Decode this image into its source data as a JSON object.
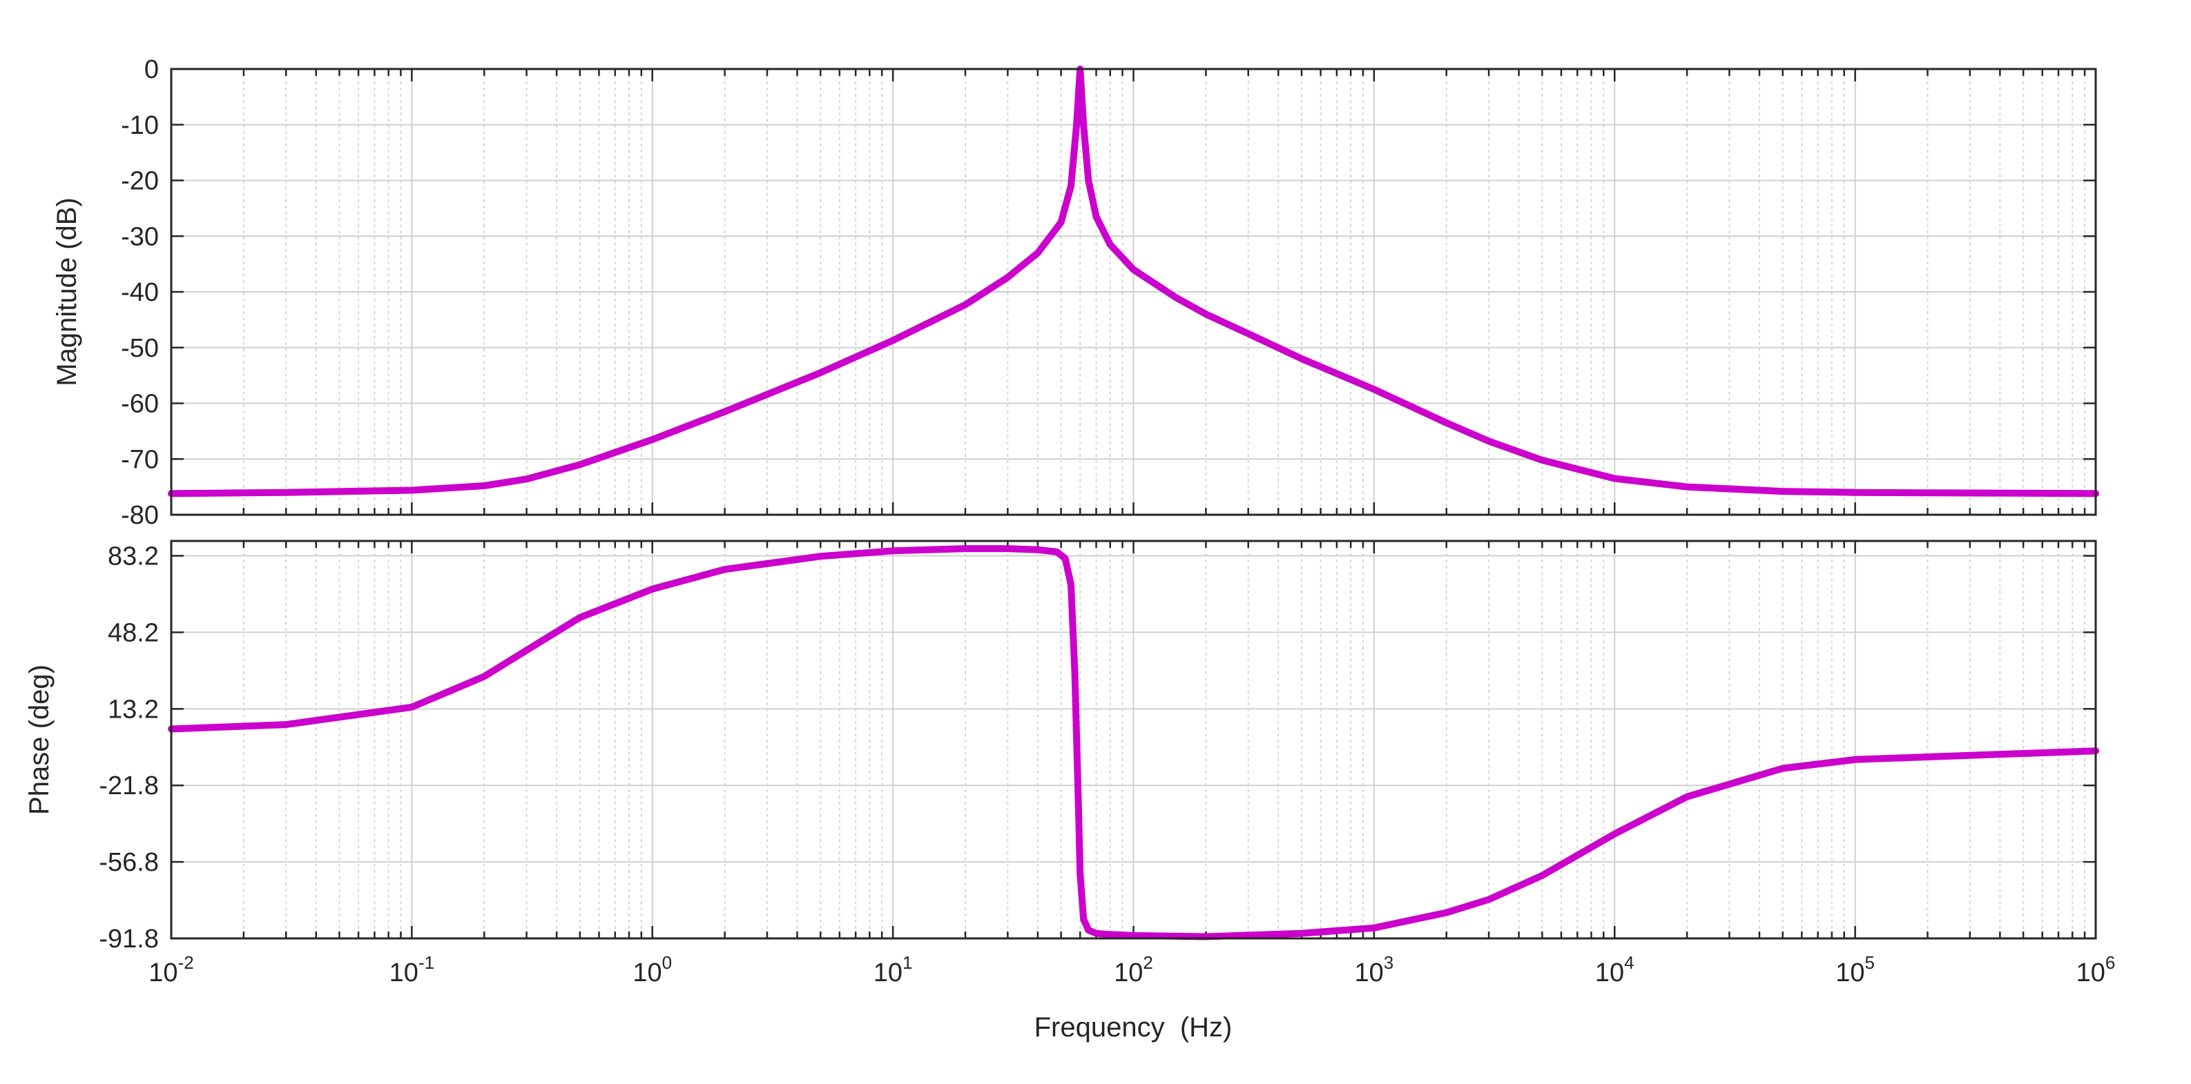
{
  "chart_data": [
    {
      "type": "line",
      "panel": "magnitude",
      "title": "",
      "ylabel": "Magnitude (dB)",
      "xscale": "log",
      "xlim": [
        0.01,
        1000000
      ],
      "ylim": [
        -80,
        0
      ],
      "yticks": [
        0,
        -10,
        -20,
        -30,
        -40,
        -50,
        -60,
        -70,
        -80
      ],
      "ytick_labels": [
        "0",
        "-10",
        "-20",
        "-30",
        "-40",
        "-50",
        "-60",
        "-70",
        "-80"
      ],
      "grid": true,
      "color": "#cc00cc",
      "series": [
        {
          "name": "Magnitude",
          "x": [
            0.01,
            0.03,
            0.1,
            0.2,
            0.3,
            0.5,
            1,
            2,
            5,
            10,
            20,
            30,
            40,
            50,
            55,
            58,
            60,
            62,
            65,
            70,
            80,
            100,
            150,
            200,
            300,
            500,
            1000,
            2000,
            3000,
            5000,
            10000,
            20000,
            50000,
            100000,
            1000000
          ],
          "y": [
            -76.2,
            -76.0,
            -75.6,
            -74.8,
            -73.6,
            -71.0,
            -66.5,
            -61.5,
            -54.5,
            -48.7,
            -42.3,
            -37.4,
            -33.0,
            -27.5,
            -21.0,
            -10.0,
            0,
            -10.0,
            -20.0,
            -26.5,
            -31.5,
            -36.0,
            -41.0,
            -44.0,
            -47.5,
            -52.0,
            -57.5,
            -63.5,
            -66.8,
            -70.2,
            -73.5,
            -75.0,
            -75.8,
            -76.0,
            -76.2
          ]
        }
      ]
    },
    {
      "type": "line",
      "panel": "phase",
      "title": "",
      "xlabel": "Frequency  (Hz)",
      "ylabel": "Phase (deg)",
      "xscale": "log",
      "xlim": [
        0.01,
        1000000
      ],
      "ylim": [
        -91.8,
        90
      ],
      "yticks": [
        83.2,
        48.2,
        13.2,
        -21.8,
        -56.8,
        -91.8
      ],
      "ytick_labels": [
        "83.2",
        "48.2",
        "13.2",
        "-21.8",
        "-56.8",
        "-91.8"
      ],
      "xticks": [
        0.01,
        0.1,
        1,
        10,
        100,
        1000,
        10000,
        100000,
        1000000
      ],
      "xtick_labels": [
        {
          "base": "10",
          "exp": "-2"
        },
        {
          "base": "10",
          "exp": "-1"
        },
        {
          "base": "10",
          "exp": "0"
        },
        {
          "base": "10",
          "exp": "1"
        },
        {
          "base": "10",
          "exp": "2"
        },
        {
          "base": "10",
          "exp": "3"
        },
        {
          "base": "10",
          "exp": "4"
        },
        {
          "base": "10",
          "exp": "5"
        },
        {
          "base": "10",
          "exp": "6"
        }
      ],
      "grid": true,
      "color": "#cc00cc",
      "series": [
        {
          "name": "Phase",
          "x": [
            0.01,
            0.03,
            0.1,
            0.2,
            0.3,
            0.5,
            1,
            2,
            5,
            10,
            20,
            30,
            40,
            48,
            52,
            55,
            57,
            58,
            59,
            60,
            62,
            65,
            70,
            80,
            100,
            200,
            500,
            1000,
            2000,
            3000,
            5000,
            10000,
            20000,
            50000,
            100000,
            1000000
          ],
          "y": [
            4,
            6,
            14,
            28,
            40,
            55,
            68,
            77,
            83,
            85.5,
            86.5,
            86.5,
            86,
            85,
            82,
            70,
            30,
            0,
            -30,
            -62,
            -83,
            -88,
            -89.5,
            -90,
            -90.5,
            -91,
            -89.5,
            -87,
            -80,
            -74,
            -63,
            -44,
            -27,
            -14,
            -10,
            -6
          ]
        }
      ]
    }
  ]
}
